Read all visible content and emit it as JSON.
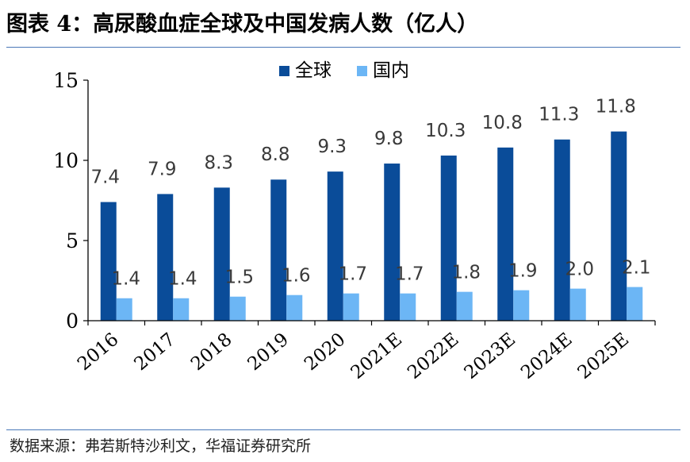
{
  "header": {
    "title": "图表 4：高尿酸血症全球及中国发病人数（亿人）"
  },
  "footer": {
    "source": "数据来源：弗若斯特沙利文，华福证券研究所"
  },
  "colors": {
    "global": "#0a4c99",
    "china": "#6cb6f5",
    "rule": "#4a78b8"
  },
  "chart_data": {
    "type": "bar",
    "title": "图表 4：高尿酸血症全球及中国发病人数（亿人）",
    "categories": [
      "2016",
      "2017",
      "2018",
      "2019",
      "2020",
      "2021E",
      "2022E",
      "2023E",
      "2024E",
      "2025E"
    ],
    "series": [
      {
        "name": "全球",
        "values": [
          7.4,
          7.9,
          8.3,
          8.8,
          9.3,
          9.8,
          10.3,
          10.8,
          11.3,
          11.8
        ]
      },
      {
        "name": "国内",
        "values": [
          1.4,
          1.4,
          1.5,
          1.6,
          1.7,
          1.7,
          1.8,
          1.9,
          2.0,
          2.1
        ]
      }
    ],
    "value_labels": [
      [
        "7.4",
        "7.9",
        "8.3",
        "8.8",
        "9.3",
        "9.8",
        "10.3",
        "10.8",
        "11.3",
        "11.8"
      ],
      [
        "1.4",
        "1.4",
        "1.5",
        "1.6",
        "1.7",
        "1.7",
        "1.8",
        "1.9",
        "2.0",
        "2.1"
      ]
    ],
    "yticks": [
      0,
      5,
      10,
      15
    ],
    "ylim": [
      0,
      15
    ],
    "xlabel": "",
    "ylabel": "",
    "legend": "top-center",
    "grid": false
  }
}
